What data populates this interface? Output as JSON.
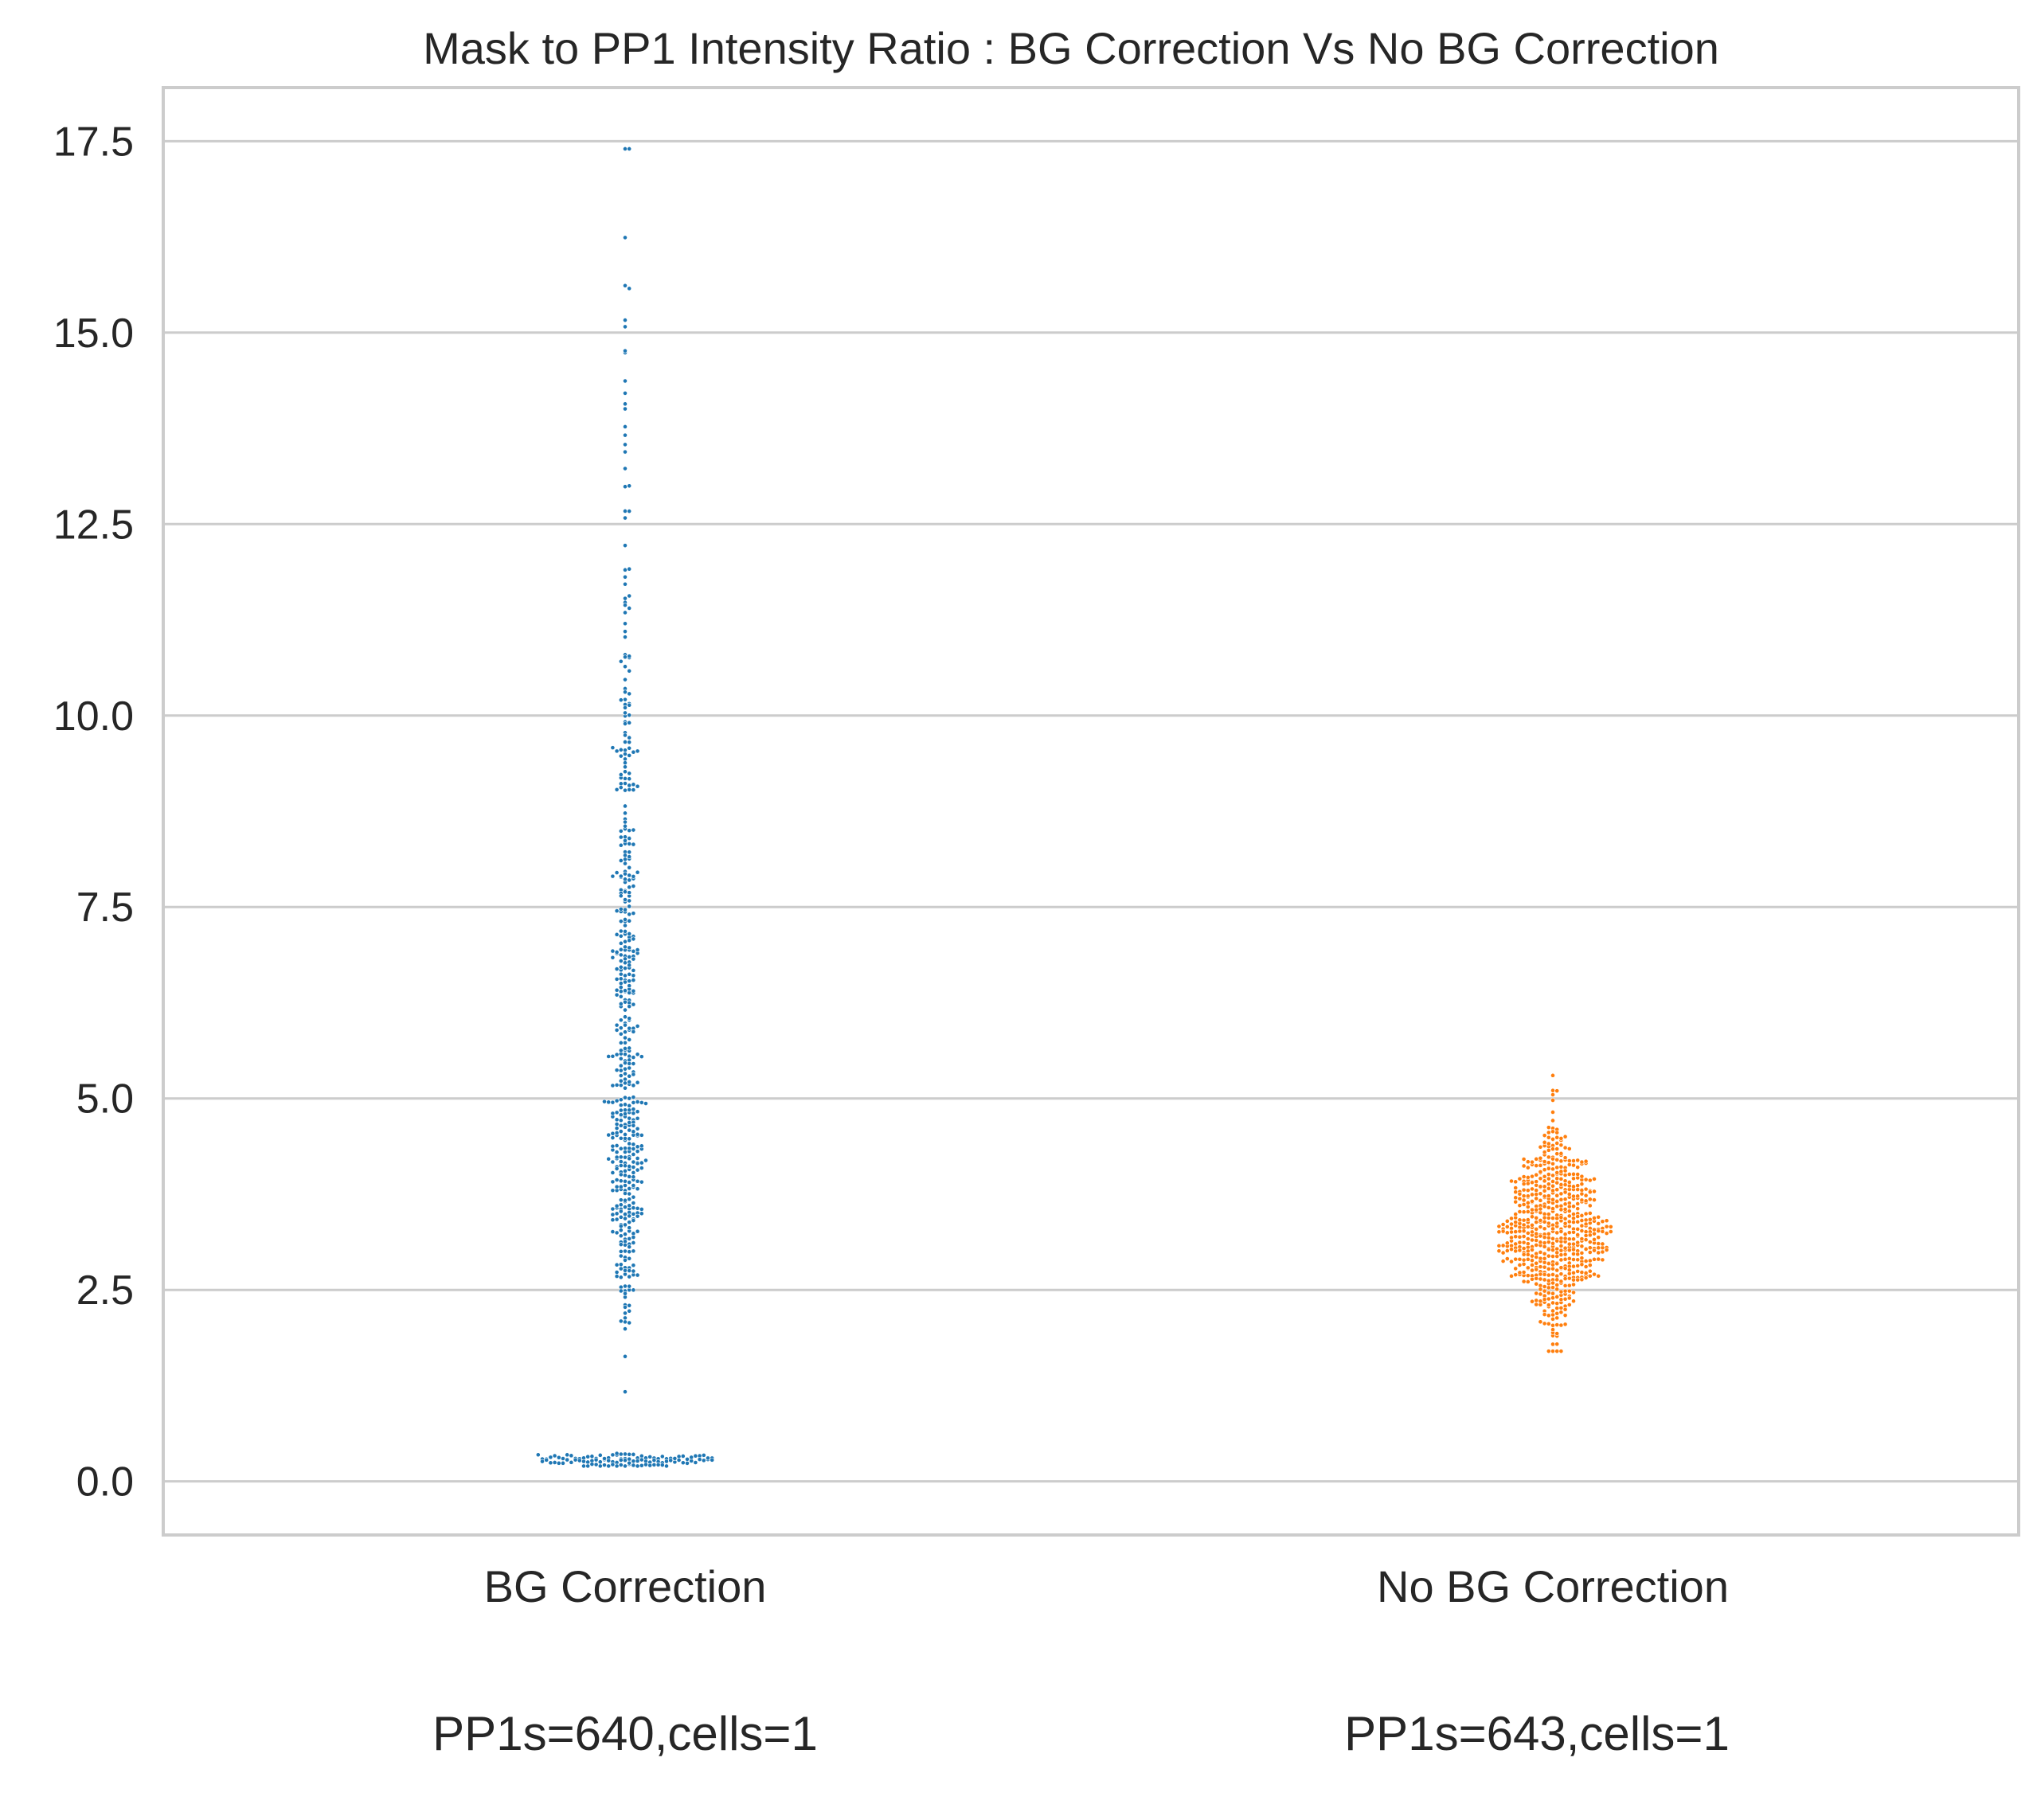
{
  "chart_data": {
    "type": "scatter",
    "subtype": "swarm",
    "title": "Mask to PP1 Intensity Ratio : BG Correction Vs No BG Correction",
    "xlabel": "",
    "ylabel": "",
    "ylim": [
      -0.7,
      18.2
    ],
    "yticks": [
      "0.0",
      "2.5",
      "5.0",
      "7.5",
      "10.0",
      "12.5",
      "15.0",
      "17.5"
    ],
    "grid": true,
    "categories": [
      "BG Correction",
      "No BG Correction"
    ],
    "annotations": [
      "PP1s=640,cells=1",
      "PP1s=643,cells=1"
    ],
    "series": [
      {
        "category": "BG Correction",
        "color": "#1f77b4",
        "n": 640,
        "distribution": {
          "min": 0.2,
          "max": 17.4,
          "clusters": [
            {
              "center": 0.28,
              "spread": 0.05,
              "count": 110
            },
            {
              "center": 4.0,
              "spread": 1.1,
              "count": 260
            },
            {
              "center": 6.7,
              "spread": 1.0,
              "count": 160
            },
            {
              "center": 9.5,
              "spread": 1.3,
              "count": 70
            },
            {
              "center": 13.0,
              "spread": 2.2,
              "count": 40
            }
          ]
        }
      },
      {
        "category": "No BG Correction",
        "color": "#ff7f0e",
        "n": 643,
        "distribution": {
          "min": 1.7,
          "max": 5.3,
          "clusters": [
            {
              "center": 3.3,
              "spread": 0.6,
              "count": 643
            }
          ]
        }
      }
    ]
  }
}
